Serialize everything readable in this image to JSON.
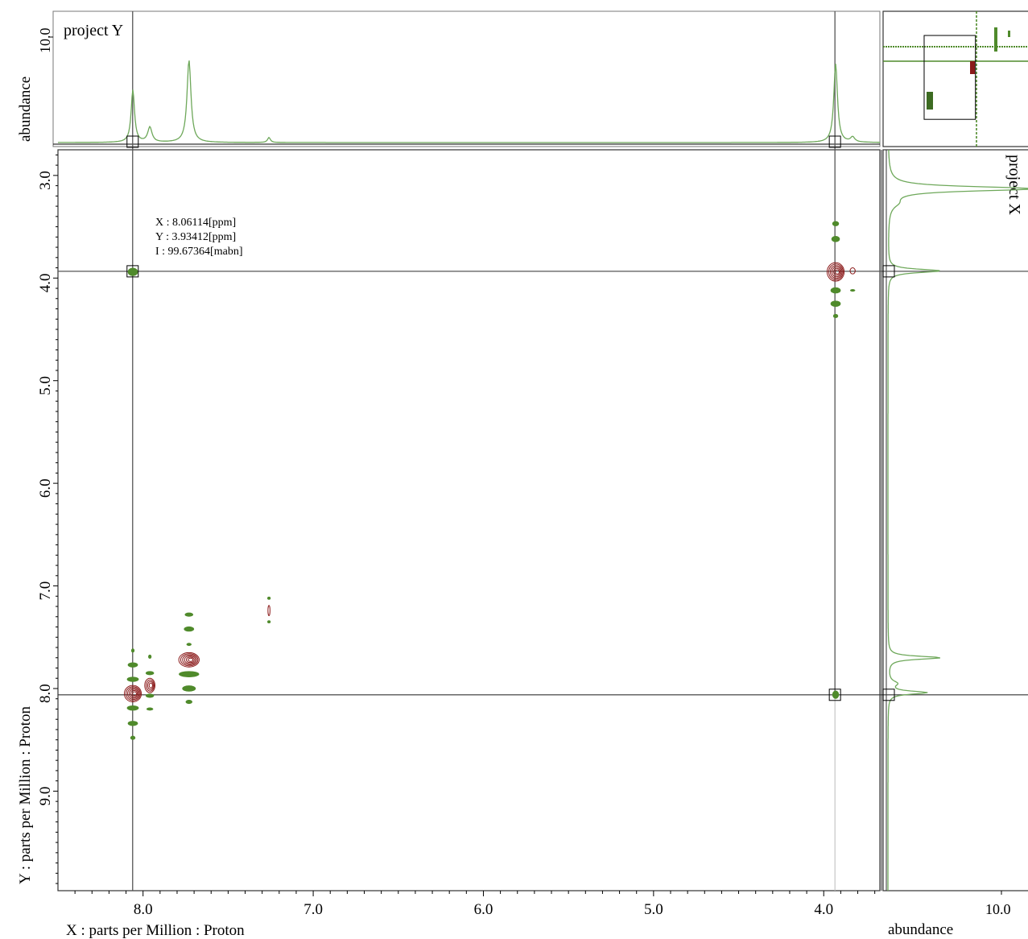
{
  "window": {
    "top_panel_title": "project Y",
    "right_panel_title": "project X",
    "top_axis_label": "abundance",
    "top_axis_tick": "10.0",
    "right_axis_label": "abundance",
    "right_axis_tick": "10.0"
  },
  "cursor_readout": {
    "x_line": "X : 8.06114[ppm]",
    "y_line": "Y : 3.93412[ppm]",
    "i_line": "I : 99.67364[mabn]"
  },
  "chart_data": {
    "type": "contour",
    "xlabel": "X : parts per Million : Proton",
    "ylabel": "Y : parts per Million : Proton",
    "xlim": [
      8.5,
      3.67
    ],
    "ylim": [
      2.75,
      9.97
    ],
    "xticks": [
      {
        "value": 8.0,
        "label": "8.0"
      },
      {
        "value": 7.0,
        "label": "7.0"
      },
      {
        "value": 6.0,
        "label": "6.0"
      },
      {
        "value": 5.0,
        "label": "5.0"
      },
      {
        "value": 4.0,
        "label": "4.0"
      }
    ],
    "yticks": [
      {
        "value": 3.0,
        "label": "3.0"
      },
      {
        "value": 4.0,
        "label": "4.0"
      },
      {
        "value": 5.0,
        "label": "5.0"
      },
      {
        "value": 6.0,
        "label": "6.0"
      },
      {
        "value": 7.0,
        "label": "7.0"
      },
      {
        "value": 8.0,
        "label": "8.0"
      },
      {
        "value": 9.0,
        "label": "9.0"
      }
    ],
    "cursor": {
      "x": 8.06114,
      "y": 3.93412
    },
    "cursor_mirror": {
      "x": 3.93412,
      "y": 8.06114
    },
    "colors": {
      "positive": "#4f8a2b",
      "negative": "#8b1a1a",
      "projection": "#6ea85a",
      "axis": "#000000",
      "guide": "#555555"
    },
    "peaks_negative": [
      {
        "x": 8.06,
        "y": 8.05,
        "rx": 0.05,
        "ry": 0.08,
        "levels": 6
      },
      {
        "x": 7.96,
        "y": 7.97,
        "rx": 0.03,
        "ry": 0.07,
        "levels": 4
      },
      {
        "x": 7.73,
        "y": 7.72,
        "rx": 0.06,
        "ry": 0.07,
        "levels": 6
      },
      {
        "x": 3.93,
        "y": 3.94,
        "rx": 0.05,
        "ry": 0.09,
        "levels": 6
      },
      {
        "x": 3.83,
        "y": 3.93,
        "rx": 0.015,
        "ry": 0.03,
        "levels": 1
      },
      {
        "x": 7.26,
        "y": 7.24,
        "rx": 0.006,
        "ry": 0.05,
        "levels": 1
      }
    ],
    "peaks_positive": [
      {
        "x": 8.06,
        "y": 3.94,
        "rx": 0.03,
        "ry": 0.04
      },
      {
        "x": 3.93,
        "y": 8.06,
        "rx": 0.02,
        "ry": 0.04
      },
      {
        "x": 3.93,
        "y": 3.47,
        "rx": 0.02,
        "ry": 0.025
      },
      {
        "x": 3.93,
        "y": 3.62,
        "rx": 0.025,
        "ry": 0.03
      },
      {
        "x": 3.93,
        "y": 4.12,
        "rx": 0.03,
        "ry": 0.03
      },
      {
        "x": 3.93,
        "y": 4.25,
        "rx": 0.03,
        "ry": 0.03
      },
      {
        "x": 3.93,
        "y": 4.37,
        "rx": 0.015,
        "ry": 0.02
      },
      {
        "x": 3.83,
        "y": 4.12,
        "rx": 0.015,
        "ry": 0.012
      },
      {
        "x": 8.06,
        "y": 7.63,
        "rx": 0.01,
        "ry": 0.02
      },
      {
        "x": 8.06,
        "y": 7.77,
        "rx": 0.03,
        "ry": 0.025
      },
      {
        "x": 8.06,
        "y": 7.91,
        "rx": 0.035,
        "ry": 0.025
      },
      {
        "x": 8.06,
        "y": 8.19,
        "rx": 0.035,
        "ry": 0.025
      },
      {
        "x": 8.06,
        "y": 8.34,
        "rx": 0.03,
        "ry": 0.025
      },
      {
        "x": 8.06,
        "y": 8.48,
        "rx": 0.015,
        "ry": 0.02
      },
      {
        "x": 7.96,
        "y": 7.69,
        "rx": 0.01,
        "ry": 0.02
      },
      {
        "x": 7.96,
        "y": 7.85,
        "rx": 0.025,
        "ry": 0.02
      },
      {
        "x": 7.96,
        "y": 8.07,
        "rx": 0.025,
        "ry": 0.02
      },
      {
        "x": 7.96,
        "y": 8.2,
        "rx": 0.02,
        "ry": 0.015
      },
      {
        "x": 7.73,
        "y": 7.28,
        "rx": 0.025,
        "ry": 0.02
      },
      {
        "x": 7.73,
        "y": 7.42,
        "rx": 0.03,
        "ry": 0.025
      },
      {
        "x": 7.73,
        "y": 7.57,
        "rx": 0.015,
        "ry": 0.015
      },
      {
        "x": 7.73,
        "y": 7.86,
        "rx": 0.06,
        "ry": 0.03
      },
      {
        "x": 7.73,
        "y": 8.0,
        "rx": 0.04,
        "ry": 0.03
      },
      {
        "x": 7.73,
        "y": 8.13,
        "rx": 0.02,
        "ry": 0.02
      },
      {
        "x": 7.26,
        "y": 7.12,
        "rx": 0.01,
        "ry": 0.015
      },
      {
        "x": 7.26,
        "y": 7.35,
        "rx": 0.01,
        "ry": 0.015
      }
    ],
    "projection_top": {
      "name": "project Y",
      "peaks": [
        {
          "x": 8.06,
          "height": 0.42,
          "width": 0.012
        },
        {
          "x": 7.96,
          "height": 0.12,
          "width": 0.015
        },
        {
          "x": 7.73,
          "height": 0.66,
          "width": 0.014
        },
        {
          "x": 7.26,
          "height": 0.04,
          "width": 0.01
        },
        {
          "x": 3.93,
          "height": 0.63,
          "width": 0.013
        },
        {
          "x": 3.83,
          "height": 0.04,
          "width": 0.015
        }
      ]
    },
    "projection_right": {
      "name": "project X",
      "peaks": [
        {
          "y": 3.13,
          "height": 1.08,
          "width": 0.025
        },
        {
          "y": 3.27,
          "height": 0.05,
          "width": 0.05
        },
        {
          "y": 3.93,
          "height": 0.38,
          "width": 0.02
        },
        {
          "y": 7.7,
          "height": 0.38,
          "width": 0.018
        },
        {
          "y": 8.04,
          "height": 0.28,
          "width": 0.018
        },
        {
          "y": 7.95,
          "height": 0.06,
          "width": 0.03
        }
      ]
    },
    "overview": {
      "view_box": {
        "x0": 0.39,
        "y0": 0.28,
        "x1": 0.85,
        "y1": 0.9
      }
    }
  }
}
